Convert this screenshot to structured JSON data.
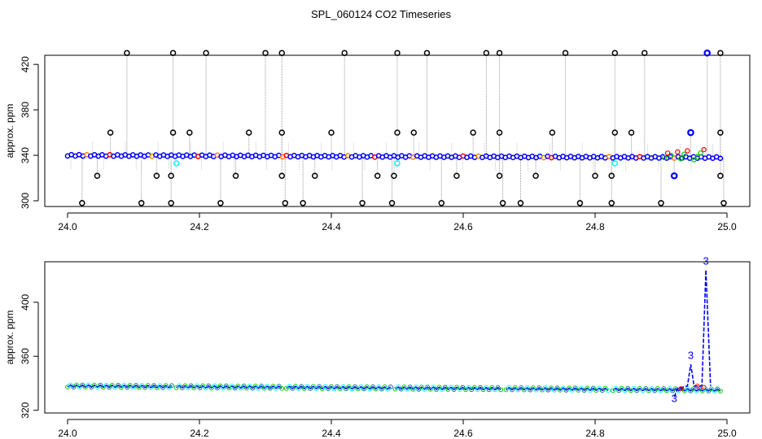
{
  "title": "SPL_060124  CO2 Timeseries",
  "colors": {
    "raw_point": "#000000",
    "vertical_line": "#999999",
    "main_series": "#0000ff",
    "secondary": "#00ffff",
    "red": "#ff0000",
    "green": "#00cc00",
    "orange": "#ff8800"
  },
  "chart_data": [
    {
      "type": "scatter",
      "panel": "top",
      "title": "",
      "xlabel": "",
      "ylabel": "approx. ppm",
      "xlim": [
        24.0,
        25.0
      ],
      "ylim": [
        295,
        428
      ],
      "x_ticks": [
        24.0,
        24.2,
        24.4,
        24.6,
        24.8,
        25.0
      ],
      "x_tick_labels": [
        "24.0",
        "24.2",
        "24.4",
        "24.6",
        "24.8",
        "25.0"
      ],
      "y_ticks": [
        300,
        340,
        380,
        420
      ],
      "y_tick_labels": [
        "300",
        "340",
        "380",
        "420"
      ],
      "baseline": {
        "x_start": 24.0,
        "x_end": 24.99,
        "y_start": 340,
        "y_end": 338
      },
      "outliers_high": [
        {
          "x": 24.09,
          "y": 430
        },
        {
          "x": 24.16,
          "y": 430
        },
        {
          "x": 24.21,
          "y": 430
        },
        {
          "x": 24.3,
          "y": 430
        },
        {
          "x": 24.325,
          "y": 430
        },
        {
          "x": 24.42,
          "y": 430
        },
        {
          "x": 24.5,
          "y": 430
        },
        {
          "x": 24.545,
          "y": 430
        },
        {
          "x": 24.635,
          "y": 430
        },
        {
          "x": 24.655,
          "y": 430
        },
        {
          "x": 24.755,
          "y": 430
        },
        {
          "x": 24.83,
          "y": 430
        },
        {
          "x": 24.875,
          "y": 430
        },
        {
          "x": 24.97,
          "y": 430
        },
        {
          "x": 24.99,
          "y": 430
        }
      ],
      "outliers_mid": [
        {
          "x": 24.065,
          "y": 360
        },
        {
          "x": 24.16,
          "y": 360
        },
        {
          "x": 24.185,
          "y": 360
        },
        {
          "x": 24.275,
          "y": 360
        },
        {
          "x": 24.325,
          "y": 360
        },
        {
          "x": 24.4,
          "y": 360
        },
        {
          "x": 24.5,
          "y": 360
        },
        {
          "x": 24.525,
          "y": 360
        },
        {
          "x": 24.615,
          "y": 360
        },
        {
          "x": 24.655,
          "y": 360
        },
        {
          "x": 24.735,
          "y": 360
        },
        {
          "x": 24.83,
          "y": 360
        },
        {
          "x": 24.855,
          "y": 360
        },
        {
          "x": 24.945,
          "y": 360
        },
        {
          "x": 24.99,
          "y": 360
        }
      ],
      "outliers_low": [
        {
          "x": 24.045,
          "y": 322
        },
        {
          "x": 24.135,
          "y": 322
        },
        {
          "x": 24.157,
          "y": 322
        },
        {
          "x": 24.255,
          "y": 322
        },
        {
          "x": 24.325,
          "y": 322
        },
        {
          "x": 24.375,
          "y": 322
        },
        {
          "x": 24.47,
          "y": 322
        },
        {
          "x": 24.495,
          "y": 322
        },
        {
          "x": 24.59,
          "y": 322
        },
        {
          "x": 24.655,
          "y": 322
        },
        {
          "x": 24.71,
          "y": 322
        },
        {
          "x": 24.8,
          "y": 322
        },
        {
          "x": 24.825,
          "y": 322
        },
        {
          "x": 24.92,
          "y": 322
        },
        {
          "x": 24.99,
          "y": 322
        }
      ],
      "outliers_bottom": [
        {
          "x": 24.022,
          "y": 298
        },
        {
          "x": 24.112,
          "y": 298
        },
        {
          "x": 24.157,
          "y": 298
        },
        {
          "x": 24.232,
          "y": 298
        },
        {
          "x": 24.33,
          "y": 298
        },
        {
          "x": 24.357,
          "y": 298
        },
        {
          "x": 24.447,
          "y": 298
        },
        {
          "x": 24.492,
          "y": 298
        },
        {
          "x": 24.567,
          "y": 298
        },
        {
          "x": 24.66,
          "y": 298
        },
        {
          "x": 24.687,
          "y": 298
        },
        {
          "x": 24.777,
          "y": 298
        },
        {
          "x": 24.825,
          "y": 298
        },
        {
          "x": 24.9,
          "y": 298
        },
        {
          "x": 24.995,
          "y": 298
        }
      ],
      "cyan_points": [
        {
          "x": 24.165,
          "y": 333
        },
        {
          "x": 24.5,
          "y": 333
        },
        {
          "x": 24.83,
          "y": 333
        }
      ],
      "late_blue_points": [
        {
          "x": 24.92,
          "y": 322
        },
        {
          "x": 24.945,
          "y": 360
        },
        {
          "x": 24.97,
          "y": 430
        }
      ]
    },
    {
      "type": "line",
      "panel": "bottom",
      "title": "",
      "xlabel": "",
      "ylabel": "approx. ppm",
      "xlim": [
        24.0,
        25.0
      ],
      "ylim": [
        318,
        430
      ],
      "x_ticks": [
        24.0,
        24.2,
        24.4,
        24.6,
        24.8,
        25.0
      ],
      "x_tick_labels": [
        "24.0",
        "24.2",
        "24.4",
        "24.6",
        "24.8",
        "25.0"
      ],
      "y_ticks": [
        320,
        360,
        400
      ],
      "y_tick_labels": [
        "320",
        "360",
        "400"
      ],
      "segments": [
        [
          24.0,
          24.158
        ],
        [
          24.165,
          24.325
        ],
        [
          24.332,
          24.49
        ],
        [
          24.497,
          24.657
        ],
        [
          24.665,
          24.82
        ],
        [
          24.827,
          24.99
        ]
      ],
      "baseline": {
        "y_start": 338,
        "y_end": 335
      },
      "spike_series": [
        {
          "x": 24.92,
          "y": 330
        },
        {
          "x": 24.925,
          "y": 336
        },
        {
          "x": 24.94,
          "y": 338
        },
        {
          "x": 24.945,
          "y": 354
        },
        {
          "x": 24.95,
          "y": 338
        },
        {
          "x": 24.962,
          "y": 338
        },
        {
          "x": 24.968,
          "y": 424
        },
        {
          "x": 24.975,
          "y": 338
        }
      ],
      "spike_labels": [
        {
          "x": 24.92,
          "y": 326,
          "text": "3"
        },
        {
          "x": 24.945,
          "y": 358,
          "text": "3"
        },
        {
          "x": 24.968,
          "y": 428,
          "text": "3"
        }
      ]
    }
  ]
}
